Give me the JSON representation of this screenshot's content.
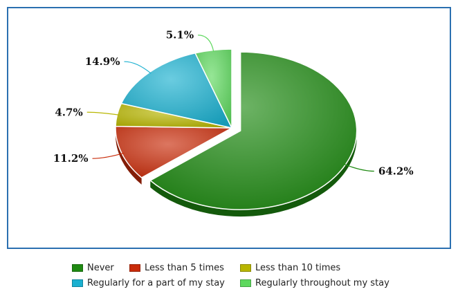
{
  "chart_data": {
    "type": "pie",
    "title": "",
    "slices": [
      {
        "label": "Never",
        "value": 64.2,
        "display": "64.2%",
        "color": "#1f8a12"
      },
      {
        "label": "Less than 5 times",
        "value": 11.2,
        "display": "11.2%",
        "color": "#c92c0a"
      },
      {
        "label": "Less than 10 times",
        "value": 4.7,
        "display": "4.7%",
        "color": "#b8b600"
      },
      {
        "label": "Regularly for a part of my stay",
        "value": 14.9,
        "display": "14.9%",
        "color": "#1ab0d0"
      },
      {
        "label": "Regularly throughout my stay",
        "value": 5.1,
        "display": "5.1%",
        "color": "#5ed85e"
      }
    ],
    "exploded_slice": "Never",
    "style": "3d",
    "legend_position": "bottom"
  },
  "frame_border_color": "#2a6fb0"
}
